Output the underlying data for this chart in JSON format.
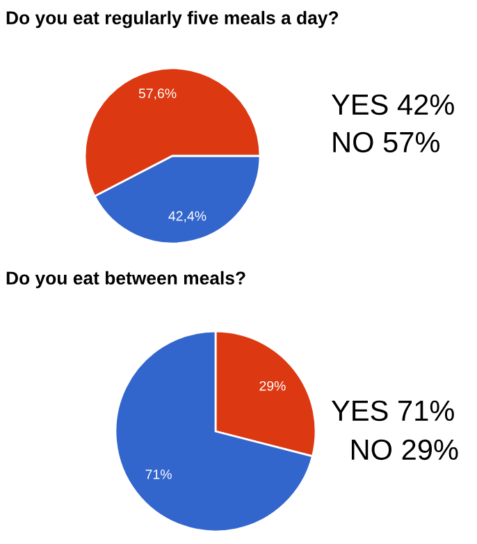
{
  "chart_data": [
    {
      "type": "pie",
      "title": "Do you eat regularly five meals a day?",
      "categories": [
        null,
        null
      ],
      "values": [
        42.4,
        57.6
      ],
      "colors": [
        "#3366cc",
        "#dc3912"
      ],
      "value_labels": [
        "42,4%",
        "57,6%"
      ],
      "annotations": [
        "YES 42%",
        "NO 57%"
      ]
    },
    {
      "type": "pie",
      "title": "Do you eat between meals?",
      "categories": [
        null,
        null
      ],
      "values": [
        29,
        71
      ],
      "colors": [
        "#dc3912",
        "#3366cc"
      ],
      "value_labels": [
        "29%",
        "71%"
      ],
      "annotations": [
        "YES 71%",
        "NO 29%"
      ]
    }
  ]
}
